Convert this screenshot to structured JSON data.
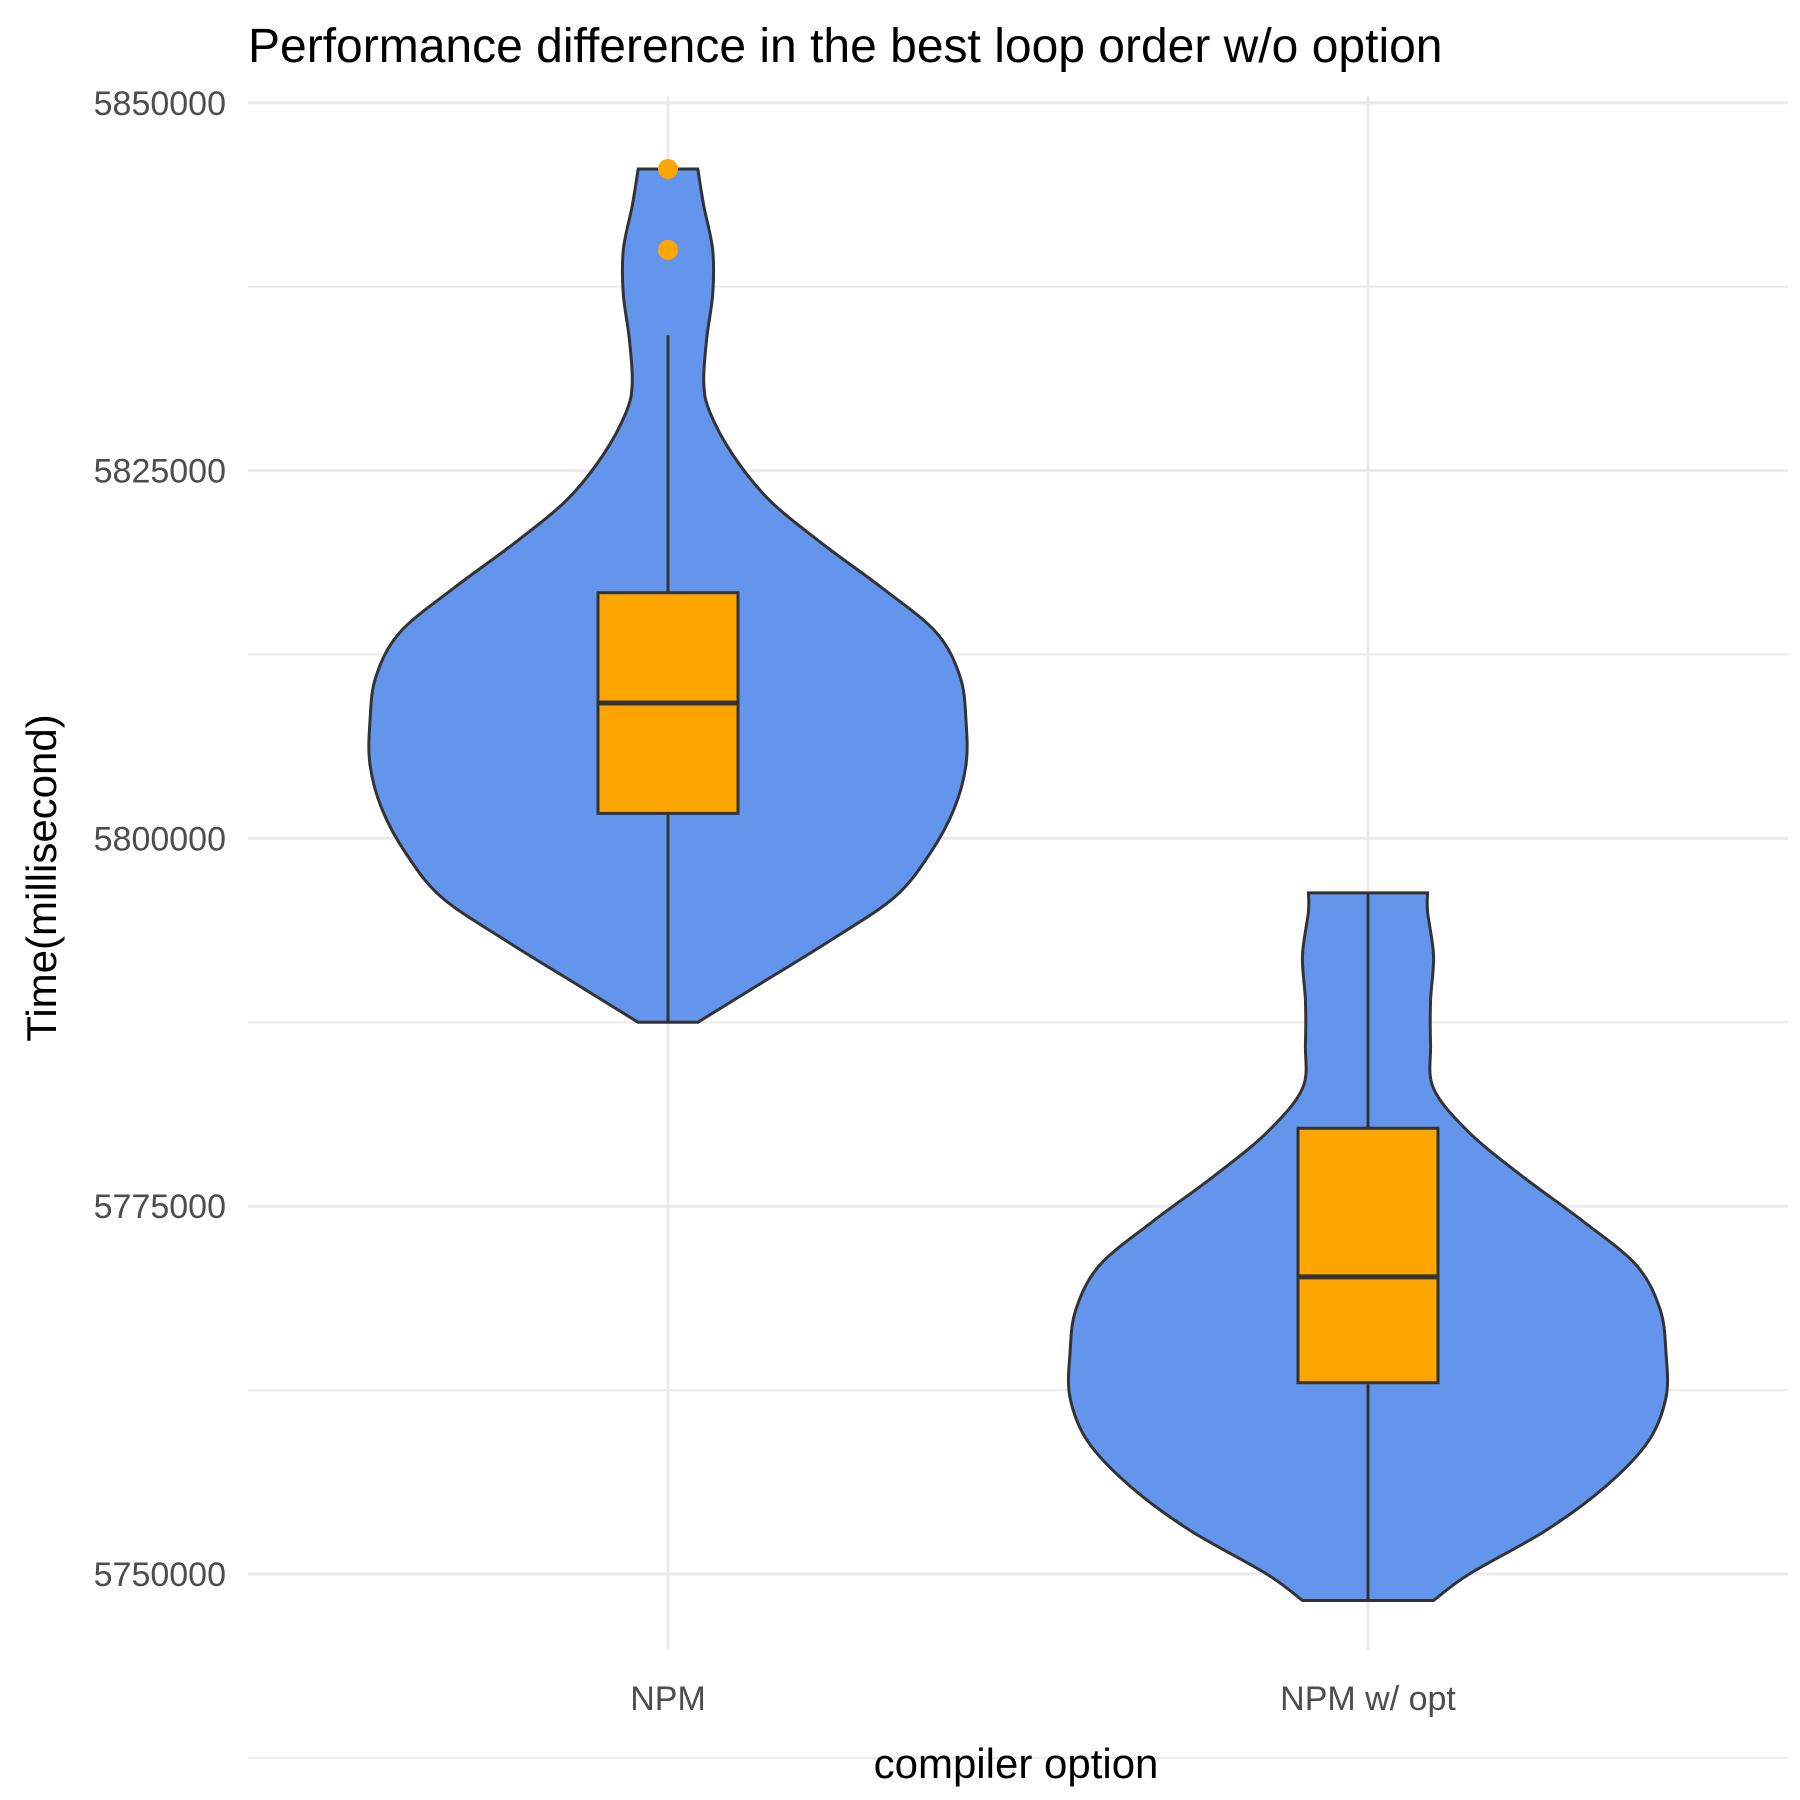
{
  "chart_data": {
    "type": "violin",
    "title": "Performance difference in the best loop order w/o option",
    "xlabel": "compiler option",
    "ylabel": "Time(millisecond)",
    "categories": [
      "NPM",
      "NPM w/ opt"
    ],
    "ylim": [
      5745000,
      5850000
    ],
    "yticks": [
      5750000,
      5775000,
      5800000,
      5825000,
      5850000
    ],
    "ytick_labels": [
      "5750000",
      "5775000",
      "5800000",
      "5825000",
      "5850000"
    ],
    "grid": true,
    "legend": "none",
    "colors": {
      "violin_fill": "#6495ed",
      "box_fill": "#ffa500",
      "outline": "#333333",
      "outlier": "#ffa500"
    },
    "violins": [
      {
        "category": "NPM",
        "density": [
          [
            5787500,
            0.1
          ],
          [
            5790000,
            0.3
          ],
          [
            5793000,
            0.54
          ],
          [
            5796000,
            0.76
          ],
          [
            5799000,
            0.88
          ],
          [
            5802000,
            0.96
          ],
          [
            5805000,
            1.0
          ],
          [
            5808000,
            1.0
          ],
          [
            5811000,
            0.98
          ],
          [
            5814000,
            0.9
          ],
          [
            5817000,
            0.72
          ],
          [
            5820000,
            0.52
          ],
          [
            5823000,
            0.34
          ],
          [
            5826000,
            0.22
          ],
          [
            5829000,
            0.14
          ],
          [
            5831000,
            0.12
          ],
          [
            5834000,
            0.13
          ],
          [
            5837000,
            0.15
          ],
          [
            5840000,
            0.15
          ],
          [
            5843000,
            0.12
          ],
          [
            5845500,
            0.1
          ]
        ]
      },
      {
        "category": "NPM w/ opt",
        "density": [
          [
            5748200,
            0.22
          ],
          [
            5750000,
            0.34
          ],
          [
            5753000,
            0.6
          ],
          [
            5756000,
            0.8
          ],
          [
            5759000,
            0.94
          ],
          [
            5762000,
            1.0
          ],
          [
            5765000,
            1.0
          ],
          [
            5768000,
            0.98
          ],
          [
            5771000,
            0.9
          ],
          [
            5774000,
            0.72
          ],
          [
            5777000,
            0.52
          ],
          [
            5780000,
            0.34
          ],
          [
            5783000,
            0.22
          ],
          [
            5786000,
            0.21
          ],
          [
            5789000,
            0.21
          ],
          [
            5792000,
            0.22
          ],
          [
            5795000,
            0.2
          ],
          [
            5796300,
            0.2
          ]
        ]
      }
    ],
    "boxes": [
      {
        "category": "NPM",
        "whisker_low": 5787500,
        "q1": 5801700,
        "median": 5809200,
        "q3": 5816700,
        "whisker_high": 5834200,
        "outliers": [
          5840000,
          5845500
        ]
      },
      {
        "category": "NPM w/ opt",
        "whisker_low": 5748200,
        "q1": 5763000,
        "median": 5770200,
        "q3": 5780300,
        "whisker_high": 5796300,
        "outliers": []
      }
    ]
  }
}
